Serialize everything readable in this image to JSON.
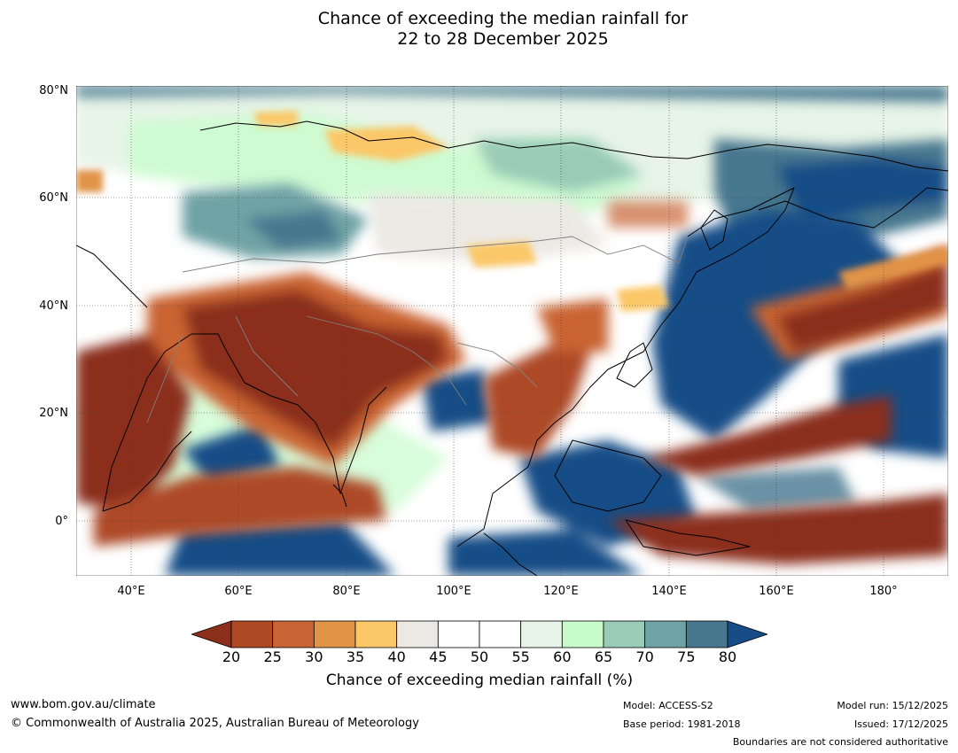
{
  "title": {
    "line1": "Chance of exceeding the median rainfall for",
    "line2": "22 to 28 December 2025"
  },
  "map": {
    "lat_labels": [
      "80°N",
      "60°N",
      "40°N",
      "20°N",
      "0°"
    ],
    "lon_labels": [
      "40°E",
      "60°E",
      "80°E",
      "100°E",
      "120°E",
      "140°E",
      "160°E",
      "180°"
    ],
    "colors": {
      "ocean_bg": "#ffffff",
      "coast": "#000000",
      "border": "#808080",
      "grid": "#444444"
    }
  },
  "colorbar": {
    "label": "Chance of exceeding median rainfall (%)",
    "ticks": [
      "20",
      "25",
      "30",
      "35",
      "40",
      "45",
      "50",
      "55",
      "60",
      "65",
      "70",
      "75",
      "80"
    ],
    "colors": [
      "#8b2e1a",
      "#ad4a25",
      "#c96333",
      "#e19346",
      "#fbc768",
      "#ece9e4",
      "#ffffff",
      "#ffffff",
      "#e7f4e7",
      "#c8fccc",
      "#99cbb6",
      "#6fa3a5",
      "#46778f",
      "#164d87"
    ]
  },
  "footer": {
    "website": "www.bom.gov.au/climate",
    "copyright": "© Commonwealth of Australia 2025, Australian Bureau of Meteorology",
    "model": "Model: ACCESS-S2",
    "base_period": "Base period: 1981-2018",
    "model_run": "Model run: 15/12/2025",
    "issued": "Issued: 17/12/2025",
    "disclaimer": "Boundaries are not considered authoritative"
  }
}
